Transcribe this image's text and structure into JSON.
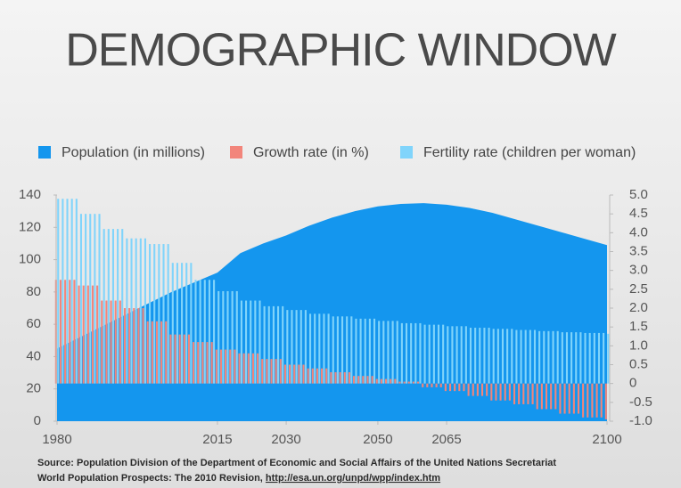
{
  "chart_data": {
    "type": "combo",
    "title": "DEMOGRAPHIC WINDOW",
    "source": "Source: Population Division of the Department of Economic and Social Affairs of the United Nations Secretariat",
    "source_line2": "World Population Prospects: The 2010 Revision,",
    "source_url": "http://esa.un.org/unpd/wpp/index.htm",
    "x": [
      1980,
      1981,
      1982,
      1983,
      1984,
      1985,
      1986,
      1987,
      1988,
      1989,
      1990,
      1991,
      1992,
      1993,
      1994,
      1995,
      1996,
      1997,
      1998,
      1999,
      2000,
      2001,
      2002,
      2003,
      2004,
      2005,
      2006,
      2007,
      2008,
      2009,
      2010,
      2011,
      2012,
      2013,
      2014,
      2015,
      2016,
      2017,
      2018,
      2019,
      2020,
      2021,
      2022,
      2023,
      2024,
      2025,
      2026,
      2027,
      2028,
      2029,
      2030,
      2031,
      2032,
      2033,
      2034,
      2035,
      2036,
      2037,
      2038,
      2039,
      2040,
      2041,
      2042,
      2043,
      2044,
      2045,
      2046,
      2047,
      2048,
      2049,
      2050,
      2051,
      2052,
      2053,
      2054,
      2055,
      2056,
      2057,
      2058,
      2059,
      2060,
      2061,
      2062,
      2063,
      2064,
      2065,
      2066,
      2067,
      2068,
      2069,
      2070,
      2071,
      2072,
      2073,
      2074,
      2075,
      2076,
      2077,
      2078,
      2079,
      2080,
      2081,
      2082,
      2083,
      2084,
      2085,
      2086,
      2087,
      2088,
      2089,
      2090,
      2091,
      2092,
      2093,
      2094,
      2095,
      2096,
      2097,
      2098,
      2099,
      2100
    ],
    "xlim": [
      1980,
      2100
    ],
    "xticks": [
      1980,
      2015,
      2030,
      2050,
      2065,
      2100
    ],
    "ylim": [
      0,
      140
    ],
    "yticks": [
      0,
      20,
      40,
      60,
      80,
      100,
      120,
      140
    ],
    "y2lim": [
      -1,
      5
    ],
    "y2ticks": [
      {
        "value": -1,
        "label": "-1.0"
      },
      -0.5,
      {
        "value": 0,
        "label": "0"
      },
      0.5,
      {
        "value": 1,
        "label": "1.0"
      },
      1.5,
      {
        "value": 2,
        "label": "2.0"
      },
      2.5,
      {
        "value": 3,
        "label": "3.0"
      },
      3.5,
      {
        "value": 4,
        "label": "4.0"
      },
      4.5,
      {
        "value": 5,
        "label": "5.0"
      }
    ],
    "series": [
      {
        "name": "Population (in millions)",
        "type": "area",
        "color": "#1496ee",
        "x": [
          1980,
          1985,
          1990,
          1995,
          2000,
          2005,
          2010,
          2015,
          2020,
          2025,
          2030,
          2035,
          2040,
          2045,
          2050,
          2055,
          2060,
          2065,
          2070,
          2075,
          2080,
          2085,
          2090,
          2095,
          2100
        ],
        "values": [
          45,
          52,
          59,
          66,
          73,
          80,
          86,
          92,
          104,
          110,
          115,
          121,
          126,
          130,
          133,
          134.5,
          135,
          134,
          132,
          129,
          125,
          121,
          117,
          113,
          109
        ]
      },
      {
        "name": "Growth rate (in %)",
        "type": "bar",
        "axis": "y2",
        "color": "#f2857b",
        "values": [
          2.75,
          2.75,
          2.75,
          2.75,
          2.75,
          2.6,
          2.6,
          2.6,
          2.6,
          2.6,
          2.2,
          2.2,
          2.2,
          2.2,
          2.2,
          2.0,
          2.0,
          2.0,
          2.0,
          2.0,
          1.65,
          1.65,
          1.65,
          1.65,
          1.65,
          1.3,
          1.3,
          1.3,
          1.3,
          1.3,
          1.1,
          1.1,
          1.1,
          1.1,
          1.1,
          0.9,
          0.9,
          0.9,
          0.9,
          0.9,
          0.8,
          0.8,
          0.8,
          0.8,
          0.8,
          0.65,
          0.65,
          0.65,
          0.65,
          0.65,
          0.5,
          0.5,
          0.5,
          0.5,
          0.5,
          0.4,
          0.4,
          0.4,
          0.4,
          0.4,
          0.3,
          0.3,
          0.3,
          0.3,
          0.3,
          0.2,
          0.2,
          0.2,
          0.2,
          0.2,
          0.12,
          0.12,
          0.12,
          0.12,
          0.12,
          0.05,
          0.05,
          0.05,
          0.05,
          0.05,
          -0.1,
          -0.1,
          -0.1,
          -0.1,
          -0.1,
          -0.2,
          -0.2,
          -0.2,
          -0.2,
          -0.2,
          -0.33,
          -0.33,
          -0.33,
          -0.33,
          -0.33,
          -0.45,
          -0.45,
          -0.45,
          -0.45,
          -0.45,
          -0.55,
          -0.55,
          -0.55,
          -0.55,
          -0.55,
          -0.68,
          -0.68,
          -0.68,
          -0.68,
          -0.68,
          -0.8,
          -0.8,
          -0.8,
          -0.8,
          -0.8,
          -0.9,
          -0.9,
          -0.9,
          -0.9,
          -0.9,
          -0.95
        ]
      },
      {
        "name": "Fertility rate (children per woman)",
        "type": "bar",
        "axis": "y2",
        "color": "#80d4fb",
        "values": [
          4.9,
          4.9,
          4.9,
          4.9,
          4.9,
          4.5,
          4.5,
          4.5,
          4.5,
          4.5,
          4.1,
          4.1,
          4.1,
          4.1,
          4.1,
          3.85,
          3.85,
          3.85,
          3.85,
          3.85,
          3.7,
          3.7,
          3.7,
          3.7,
          3.7,
          3.2,
          3.2,
          3.2,
          3.2,
          3.2,
          2.75,
          2.75,
          2.75,
          2.75,
          2.75,
          2.45,
          2.45,
          2.45,
          2.45,
          2.45,
          2.2,
          2.2,
          2.2,
          2.2,
          2.2,
          2.05,
          2.05,
          2.05,
          2.05,
          2.05,
          1.95,
          1.95,
          1.95,
          1.95,
          1.95,
          1.85,
          1.85,
          1.85,
          1.85,
          1.85,
          1.78,
          1.78,
          1.78,
          1.78,
          1.78,
          1.72,
          1.72,
          1.72,
          1.72,
          1.72,
          1.66,
          1.66,
          1.66,
          1.66,
          1.66,
          1.6,
          1.6,
          1.6,
          1.6,
          1.6,
          1.56,
          1.56,
          1.56,
          1.56,
          1.56,
          1.52,
          1.52,
          1.52,
          1.52,
          1.52,
          1.48,
          1.48,
          1.48,
          1.48,
          1.48,
          1.45,
          1.45,
          1.45,
          1.45,
          1.45,
          1.42,
          1.42,
          1.42,
          1.42,
          1.42,
          1.39,
          1.39,
          1.39,
          1.39,
          1.39,
          1.36,
          1.36,
          1.36,
          1.36,
          1.36,
          1.34,
          1.34,
          1.34,
          1.34,
          1.34,
          1.32
        ]
      }
    ]
  }
}
